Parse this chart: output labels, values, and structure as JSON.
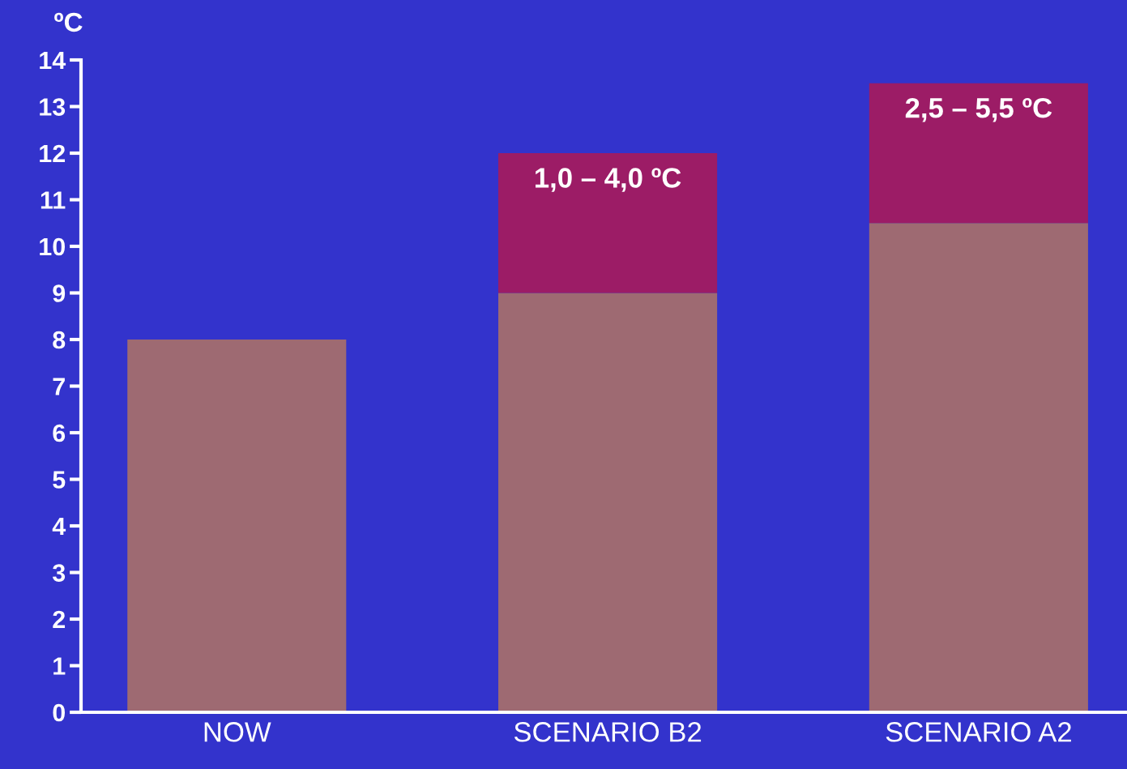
{
  "chart_data": {
    "type": "bar",
    "stacked": true,
    "ylabel": "ºC",
    "categories": [
      "NOW",
      "SCENARIO B2",
      "SCENARIO A2"
    ],
    "series": [
      {
        "color": "#9e6a72",
        "values": [
          8,
          9,
          10.5
        ]
      },
      {
        "color": "#9c1c66",
        "values": [
          null,
          3,
          3
        ]
      }
    ],
    "ylim": [
      0,
      14
    ],
    "yticks": [
      0,
      1,
      2,
      3,
      4,
      5,
      6,
      7,
      8,
      9,
      10,
      11,
      12,
      13,
      14
    ],
    "annotations": [
      "1,0 – 4,0 ºC",
      "2,5 – 5,5 ºC"
    ],
    "grid": false,
    "legend": false
  }
}
